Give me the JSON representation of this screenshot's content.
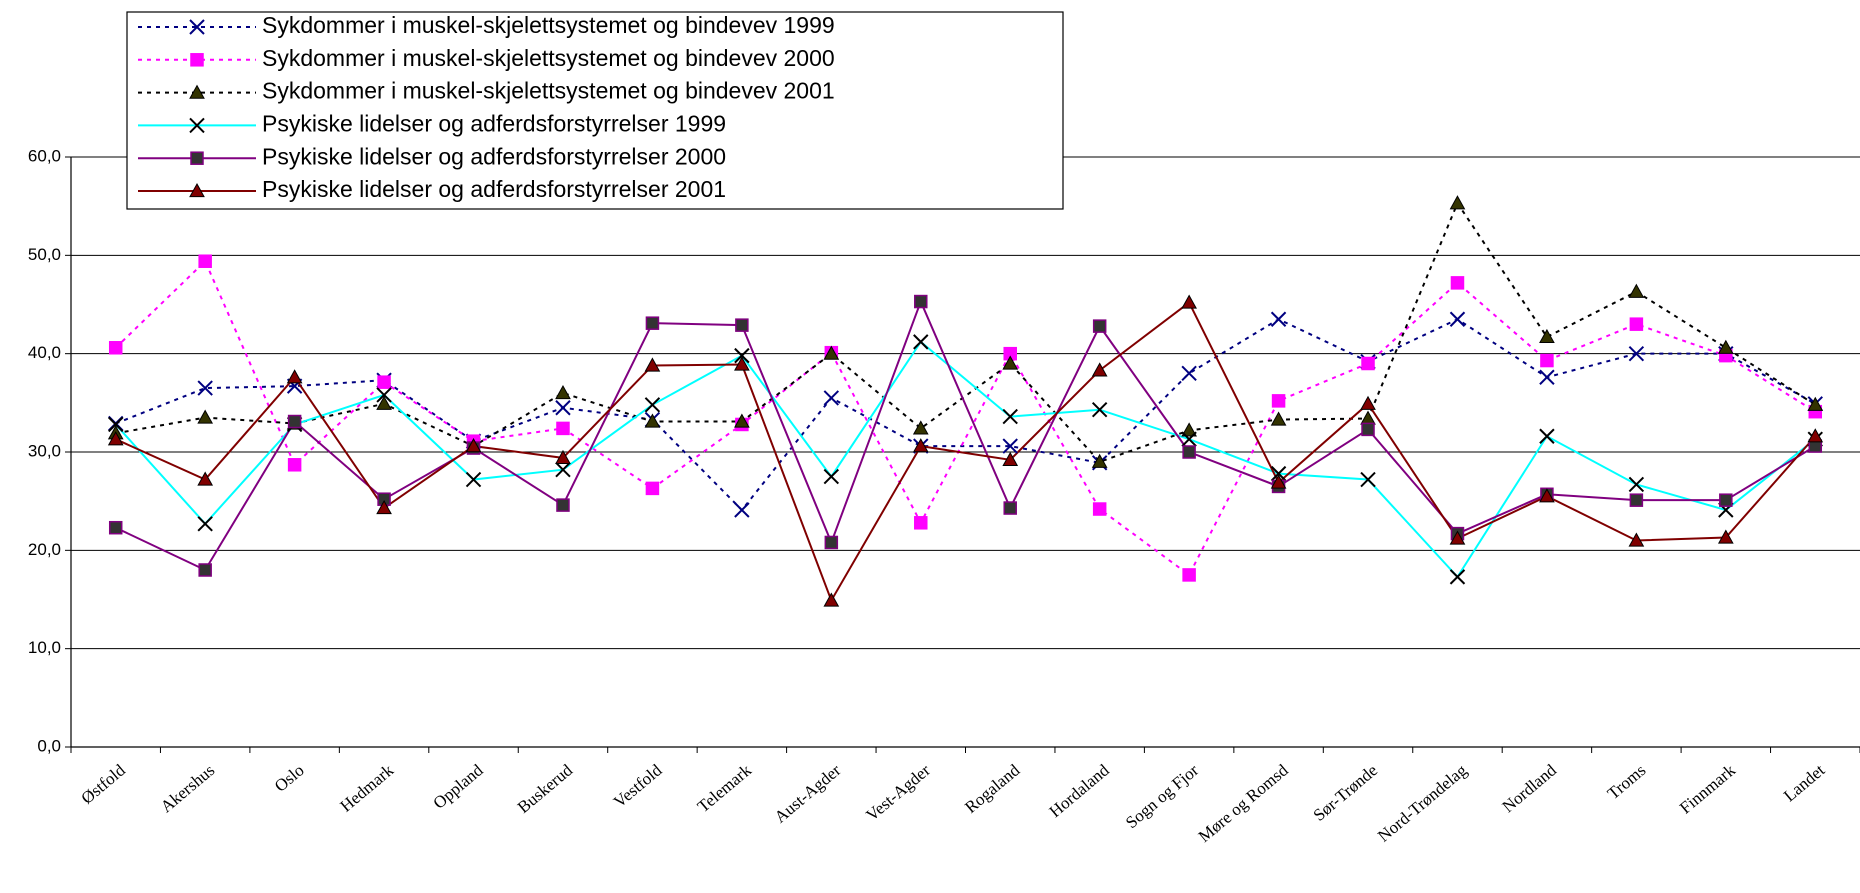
{
  "chart_data": {
    "type": "line",
    "categories": [
      "Østfold",
      "Akershus",
      "Oslo",
      "Hedmark",
      "Oppland",
      "Buskerud",
      "Vestfold",
      "Telemark",
      "Aust-Agder",
      "Vest-Agder",
      "Rogaland",
      "Hordaland",
      "Sogn og Fjor",
      "Møre og Romsd",
      "Sør-Trønde",
      "Nord-Trøndelag",
      "Nordland",
      "Troms",
      "Finnmark",
      "Landet"
    ],
    "ylim": [
      0,
      60
    ],
    "yticks": [
      {
        "value": 0,
        "label": "0,0"
      },
      {
        "value": 10,
        "label": "10,0"
      },
      {
        "value": 20,
        "label": "20,0"
      },
      {
        "value": 30,
        "label": "30,0"
      },
      {
        "value": 40,
        "label": "40,0"
      },
      {
        "value": 50,
        "label": "50,0"
      },
      {
        "value": 60,
        "label": "60,0"
      }
    ],
    "grid": true,
    "legend": "top-left",
    "series": [
      {
        "name": "Sykdommer i muskel-skjelettsystemet og bindevev 1999",
        "color": "#000080",
        "marker": "x",
        "marker_color": "#000080",
        "dashed": true,
        "values": [
          32.9,
          36.5,
          36.7,
          37.3,
          31.1,
          34.5,
          33.3,
          24.1,
          35.5,
          30.6,
          30.6,
          28.9,
          38.0,
          43.5,
          39.2,
          43.5,
          37.6,
          40.0,
          40.0,
          34.9
        ]
      },
      {
        "name": "Sykdommer i muskel-skjelettsystemet og bindevev 2000",
        "color": "#ff00ff",
        "marker": "square",
        "marker_color": "#ff00ff",
        "dashed": true,
        "values": [
          40.6,
          49.4,
          28.7,
          37.1,
          31.1,
          32.4,
          26.3,
          32.8,
          40.1,
          22.8,
          40.0,
          24.2,
          17.5,
          35.2,
          39.0,
          47.2,
          39.3,
          43.0,
          39.8,
          34.1
        ]
      },
      {
        "name": "Sykdommer i muskel-skjelettsystemet og bindevev 2001",
        "color": "#000000",
        "marker": "triangle",
        "marker_color": "#333300",
        "dashed": true,
        "values": [
          31.9,
          33.5,
          32.9,
          34.9,
          30.6,
          36.0,
          33.1,
          33.1,
          40.0,
          32.4,
          39.0,
          29.0,
          32.2,
          33.3,
          33.4,
          55.3,
          41.7,
          46.3,
          40.6,
          34.8
        ]
      },
      {
        "name": "Psykiske lidelser og adferdsforstyrrelser 1999",
        "color": "#00ffff",
        "marker": "x",
        "marker_color": "#000000",
        "dashed": false,
        "values": [
          32.8,
          22.7,
          32.8,
          35.8,
          27.2,
          28.2,
          34.8,
          39.8,
          27.5,
          41.2,
          33.6,
          34.3,
          31.3,
          27.8,
          27.2,
          17.3,
          31.6,
          26.7,
          24.1,
          31.3
        ]
      },
      {
        "name": "Psykiske lidelser og adferdsforstyrrelser 2000",
        "color": "#800080",
        "marker": "square",
        "marker_color": "#333333",
        "dashed": false,
        "values": [
          22.3,
          18.0,
          33.1,
          25.2,
          30.4,
          24.6,
          43.1,
          42.9,
          20.8,
          45.3,
          24.3,
          42.8,
          30.0,
          26.5,
          32.3,
          21.7,
          25.7,
          25.1,
          25.1,
          30.6
        ]
      },
      {
        "name": "Psykiske lidelser og adferdsforstyrrelser 2001",
        "color": "#800000",
        "marker": "triangle",
        "marker_color": "#800000",
        "dashed": false,
        "values": [
          31.3,
          27.2,
          37.6,
          24.3,
          30.6,
          29.4,
          38.8,
          38.9,
          14.9,
          30.6,
          29.2,
          38.3,
          45.2,
          26.9,
          34.9,
          21.2,
          25.5,
          21.0,
          21.3,
          31.6
        ]
      }
    ]
  }
}
